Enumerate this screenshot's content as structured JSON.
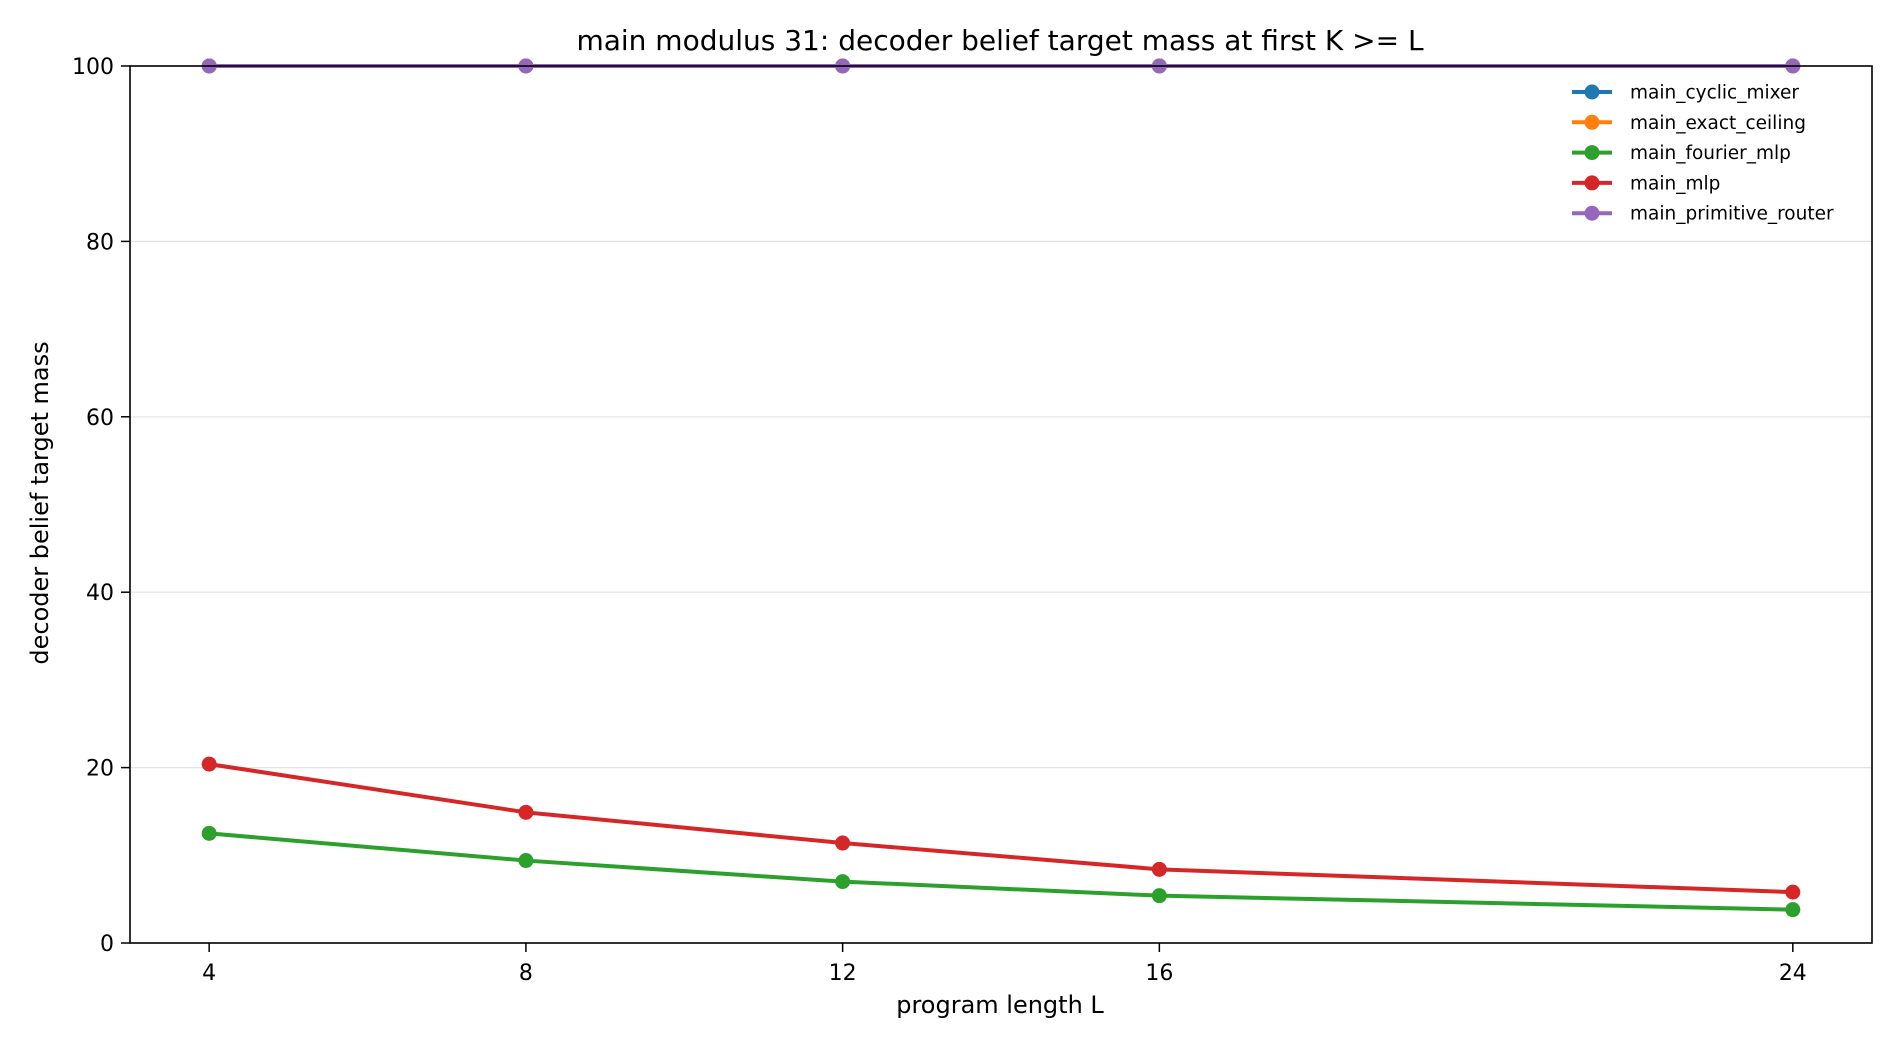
{
  "chart_data": {
    "type": "line",
    "title": "main modulus 31: decoder belief target mass at first K >= L",
    "xlabel": "program length L",
    "ylabel": "decoder belief target mass",
    "x": [
      4,
      8,
      12,
      16,
      24
    ],
    "xticks": [
      4,
      8,
      12,
      16,
      24
    ],
    "xlim": [
      3,
      25
    ],
    "ylim": [
      0,
      100
    ],
    "yticks": [
      0,
      20,
      40,
      60,
      80,
      100
    ],
    "grid": "horizontal",
    "legend": "top-right",
    "series": [
      {
        "name": "main_cyclic_mixer",
        "color": "#1f77b4",
        "values": [
          100,
          100,
          100,
          100,
          100
        ]
      },
      {
        "name": "main_exact_ceiling",
        "color": "#ff7f0e",
        "values": [
          100,
          100,
          100,
          100,
          100
        ]
      },
      {
        "name": "main_fourier_mlp",
        "color": "#2ca02c",
        "values": [
          12.5,
          9.4,
          7.0,
          5.4,
          3.8
        ]
      },
      {
        "name": "main_mlp",
        "color": "#d62728",
        "values": [
          20.4,
          14.9,
          11.4,
          8.4,
          5.8
        ]
      },
      {
        "name": "main_primitive_router",
        "color": "#9467bd",
        "values": [
          100,
          100,
          100,
          100,
          100
        ]
      }
    ]
  }
}
